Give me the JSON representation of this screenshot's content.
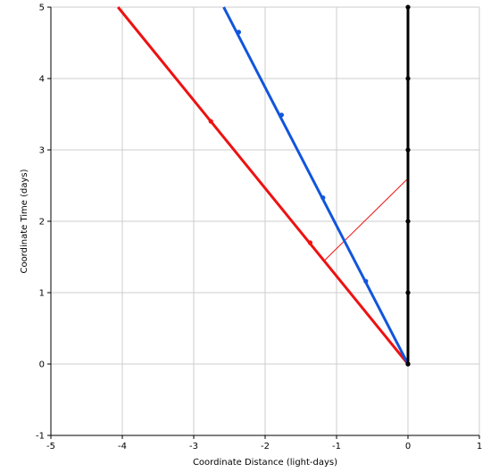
{
  "chart_data": {
    "type": "line",
    "xlabel": "Coordinate Distance (light-days)",
    "ylabel": "Coordinate Time (days)",
    "xlim": [
      -5,
      1
    ],
    "ylim": [
      -1,
      5
    ],
    "xticks": [
      -5,
      -4,
      -3,
      -2,
      -1,
      0,
      1
    ],
    "yticks": [
      -1,
      0,
      1,
      2,
      3,
      4,
      5
    ],
    "grid": true,
    "colors": {
      "red": "#ee1111",
      "blue": "#1155dd",
      "black": "#000000",
      "grid": "#cccccc"
    },
    "series": [
      {
        "color": "#ee1111",
        "line": [
          [
            0,
            0
          ],
          [
            -4.06,
            5
          ]
        ],
        "points": [
          [
            0,
            0
          ],
          [
            -1.37,
            1.7
          ],
          [
            -2.76,
            3.4
          ]
        ]
      },
      {
        "color": "#1155dd",
        "line": [
          [
            0,
            0
          ],
          [
            -2.58,
            5
          ]
        ],
        "points": [
          [
            0,
            0
          ],
          [
            -0.59,
            1.16
          ],
          [
            -1.19,
            2.33
          ],
          [
            -1.77,
            3.49
          ],
          [
            -2.37,
            4.65
          ]
        ]
      },
      {
        "color": "#000000",
        "line": [
          [
            0,
            0
          ],
          [
            0,
            5
          ]
        ],
        "points": [
          [
            0,
            0
          ],
          [
            0,
            1
          ],
          [
            0,
            2
          ],
          [
            0,
            3
          ],
          [
            0,
            4
          ],
          [
            0,
            5
          ]
        ]
      }
    ],
    "annotations": [
      {
        "type": "thin-line",
        "color": "#ee1111",
        "from": [
          -1.17,
          1.45
        ],
        "to": [
          0,
          2.6
        ]
      }
    ]
  }
}
